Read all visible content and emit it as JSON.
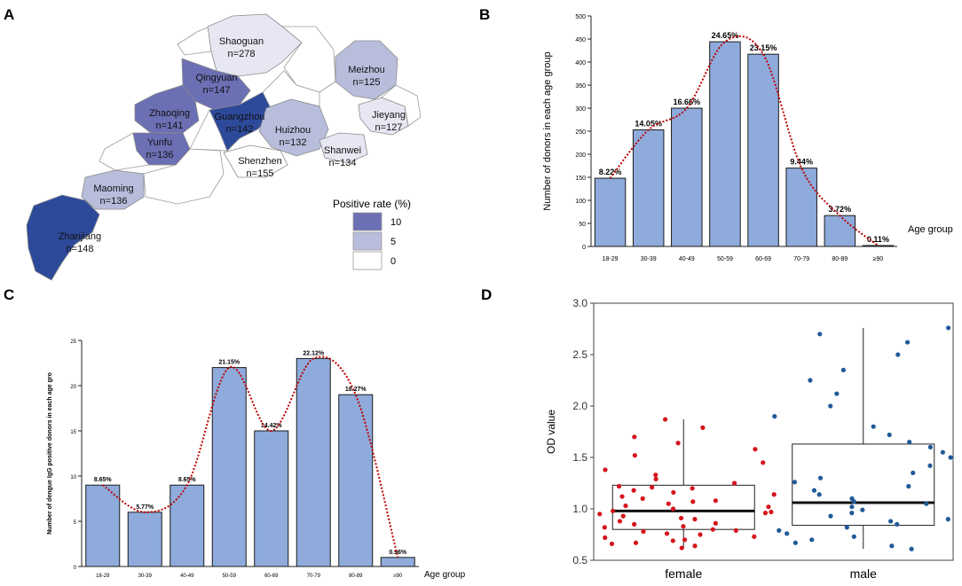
{
  "colors": {
    "bar_fill": "#8eabdc",
    "bar_stroke": "#1a1a1a",
    "curve": "#c00000",
    "map_high": "#6b6fb3",
    "map_highest": "#2d4a9a",
    "map_mid": "#b9bddc",
    "map_low": "#e6e7f2",
    "map_zero": "#ffffff",
    "female_points": "#d4141c",
    "male_points": "#1f5a99"
  },
  "panels": {
    "a": {
      "letter": "A",
      "legend_title": "Positive rate (%)",
      "legend_items": [
        "10",
        "5",
        "0"
      ],
      "cities": [
        {
          "name": "Shaoguan",
          "n": "n=278",
          "level": "low"
        },
        {
          "name": "Qingyuan",
          "n": "n=147",
          "level": "high"
        },
        {
          "name": "Meizhou",
          "n": "n=125",
          "level": "mid"
        },
        {
          "name": "Zhaoqing",
          "n": "n=141",
          "level": "high"
        },
        {
          "name": "Guangzhou",
          "n": "n=142",
          "level": "highest"
        },
        {
          "name": "Huizhou",
          "n": "n=132",
          "level": "mid"
        },
        {
          "name": "Jieyang",
          "n": "n=127",
          "level": "low"
        },
        {
          "name": "Yunfu",
          "n": "n=136",
          "level": "high"
        },
        {
          "name": "Shanwei",
          "n": "n=134",
          "level": "low"
        },
        {
          "name": "Shenzhen",
          "n": "n=155",
          "level": "zero"
        },
        {
          "name": "Maoming",
          "n": "n=136",
          "level": "mid"
        },
        {
          "name": "Zhanjiang",
          "n": "n=148",
          "level": "highest"
        }
      ]
    },
    "b": {
      "letter": "B"
    },
    "c": {
      "letter": "C"
    },
    "d": {
      "letter": "D"
    }
  },
  "chart_data": [
    {
      "panel": "B",
      "type": "bar",
      "ylabel": "Number of donors  in each age group",
      "xlabel": "Age group",
      "ylim": [
        0,
        500
      ],
      "yticks": [
        0,
        50,
        100,
        150,
        200,
        250,
        300,
        350,
        400,
        450,
        500
      ],
      "categories": [
        "18-29",
        "30-39",
        "40-49",
        "50-59",
        "60-69",
        "70-79",
        "80-89",
        "≥90"
      ],
      "values": [
        148,
        253,
        300,
        444,
        417,
        170,
        67,
        2
      ],
      "labels": [
        "8.22%",
        "14.05%",
        "16.66%",
        "24.65%",
        "23.15%",
        "9.44%",
        "3.72%",
        "0.11%"
      ],
      "trend_line": "dotted fitted curve"
    },
    {
      "panel": "C",
      "type": "bar",
      "ylabel": "Number of dengue IgG positive donors  in each age gro",
      "xlabel": "Age group",
      "ylim": [
        0,
        25
      ],
      "yticks": [
        0,
        5,
        10,
        15,
        20,
        25
      ],
      "categories": [
        "18-29",
        "30-39",
        "40-49",
        "50-59",
        "60-69",
        "70-79",
        "80-89",
        "≥90"
      ],
      "values": [
        9,
        6,
        9,
        22,
        15,
        23,
        19,
        1
      ],
      "labels": [
        "8.65%",
        "5.77%",
        "8.65%",
        "21.15%",
        "14.42%",
        "22.12%",
        "18.27%",
        "0.96%"
      ],
      "trend_line": "dotted fitted curve"
    },
    {
      "panel": "D",
      "type": "box",
      "ylabel": "OD value",
      "ylim": [
        0.5,
        3.0
      ],
      "yticks": [
        "0.5",
        "1.0",
        "1.5",
        "2.0",
        "2.5",
        "3.0"
      ],
      "groups": [
        {
          "name": "female",
          "box": {
            "min": 0.62,
            "q1": 0.8,
            "median": 0.98,
            "q3": 1.23,
            "max": 1.87
          },
          "points": [
            0.62,
            0.64,
            0.66,
            0.67,
            0.69,
            0.7,
            0.72,
            0.73,
            0.75,
            0.76,
            0.78,
            0.79,
            0.8,
            0.82,
            0.83,
            0.85,
            0.86,
            0.88,
            0.9,
            0.91,
            0.93,
            0.95,
            0.96,
            0.97,
            0.98,
            1.0,
            1.02,
            1.03,
            1.05,
            1.07,
            1.08,
            1.1,
            1.12,
            1.14,
            1.16,
            1.18,
            1.2,
            1.21,
            1.22,
            1.25,
            1.29,
            1.33,
            1.38,
            1.45,
            1.52,
            1.58,
            1.64,
            1.7,
            1.79,
            1.87
          ]
        },
        {
          "name": "male",
          "box": {
            "min": 0.61,
            "q1": 0.84,
            "median": 1.06,
            "q3": 1.63,
            "max": 2.76
          },
          "points": [
            0.61,
            0.64,
            0.67,
            0.7,
            0.73,
            0.76,
            0.79,
            0.82,
            0.85,
            0.88,
            0.9,
            0.93,
            0.96,
            0.99,
            1.02,
            1.05,
            1.07,
            1.1,
            1.14,
            1.18,
            1.22,
            1.26,
            1.3,
            1.35,
            1.42,
            1.5,
            1.55,
            1.6,
            1.65,
            1.72,
            1.8,
            1.9,
            2.0,
            2.12,
            2.25,
            2.35,
            2.5,
            2.62,
            2.7,
            2.76
          ]
        }
      ]
    }
  ]
}
